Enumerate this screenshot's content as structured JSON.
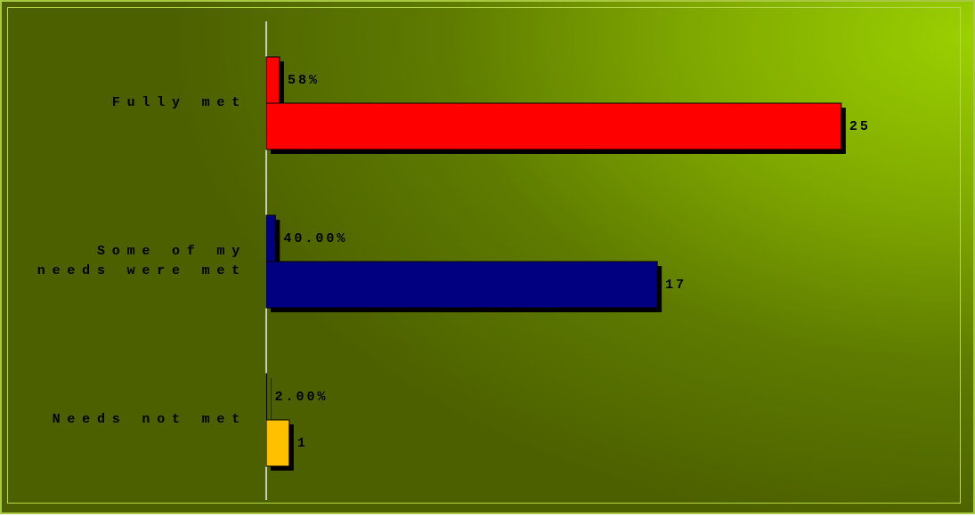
{
  "chart_data": {
    "type": "bar",
    "orientation": "horizontal",
    "categories": [
      "Fully met",
      "Some of my needs were met",
      "Needs not met"
    ],
    "colors": [
      "#ff0000",
      "#000080",
      "#ffc000"
    ],
    "series": [
      {
        "values": [
          0.58,
          0.4,
          0.02
        ],
        "value_labels": [
          "58%",
          "40.00%",
          "2.00%"
        ]
      },
      {
        "values": [
          25,
          17,
          1
        ]
      }
    ],
    "xlim": [
      0,
      30
    ]
  }
}
